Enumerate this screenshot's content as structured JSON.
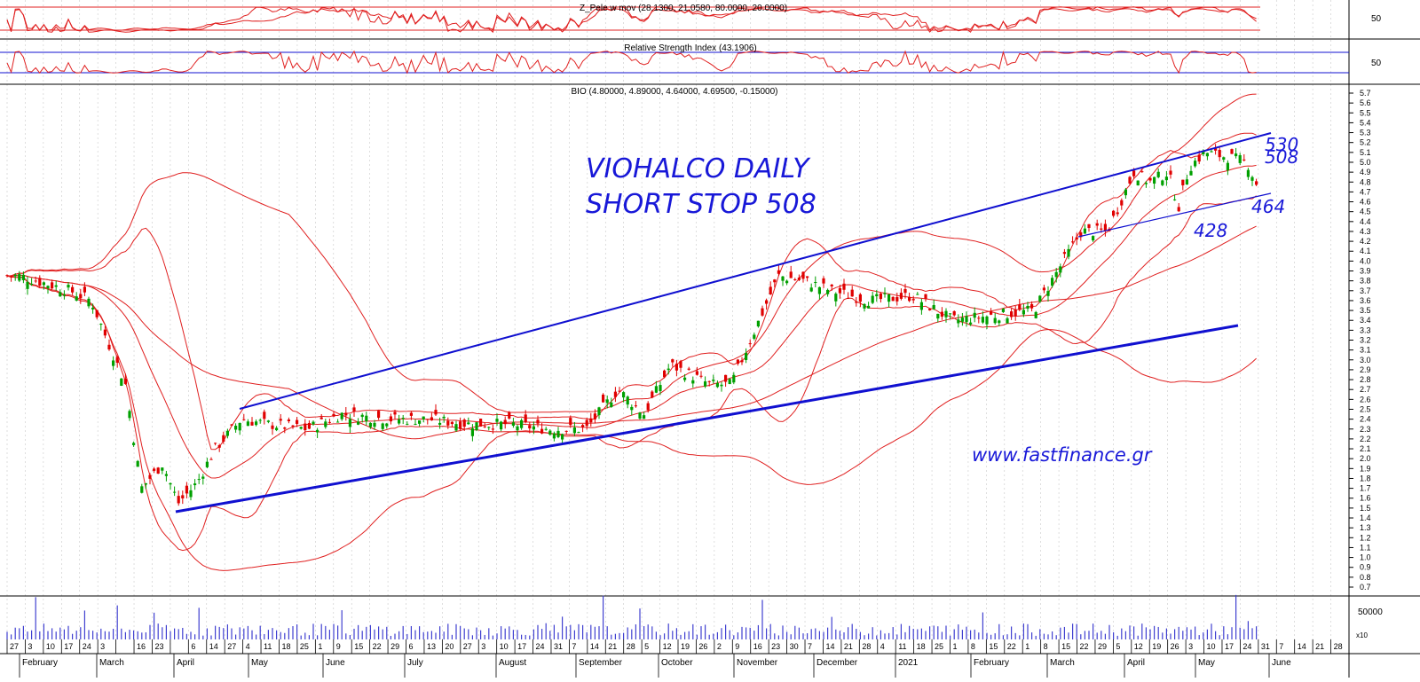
{
  "panels": {
    "stoch_label": "Z_Pele w mov (28.1300, 21.0580, 80.0000, 20.0000)",
    "rsi_label": "Relative Strength Index (43.1906)",
    "price_label": "BIO (4.80000, 4.89000, 4.64000, 4.69500, -0.15000)",
    "stoch_axis_label": "50",
    "rsi_axis_label": "50",
    "volume_axis_label": "50000",
    "volume_multiplier": "x10"
  },
  "annotations": {
    "title_line1": "VIOHALCO DAILY",
    "title_line2": "SHORT STOP 508",
    "website": "www.fastfinance.gr",
    "level_530": "530",
    "level_508": "508",
    "level_464": "464",
    "level_428": "428"
  },
  "colors": {
    "up_candle": "#00a000",
    "down_candle": "#e00000",
    "bands": "#e02020",
    "trend": "#1010d0",
    "volume": "#4040d0",
    "grid": "#c8c8c8"
  },
  "x_axis": {
    "days": [
      "27",
      "3",
      "10",
      "17",
      "24",
      "3",
      "",
      "16",
      "23",
      "",
      "6",
      "14",
      "27",
      "4",
      "11",
      "18",
      "25",
      "1",
      "9",
      "15",
      "22",
      "29",
      "6",
      "13",
      "20",
      "27",
      "3",
      "10",
      "17",
      "24",
      "31",
      "7",
      "14",
      "21",
      "28",
      "5",
      "12",
      "19",
      "26",
      "2",
      "9",
      "16",
      "23",
      "30",
      "7",
      "14",
      "21",
      "28",
      "4",
      "11",
      "18",
      "25",
      "1",
      "8",
      "15",
      "22",
      "1",
      "8",
      "15",
      "22",
      "29",
      "5",
      "12",
      "19",
      "26",
      "3",
      "10",
      "17",
      "24",
      "31",
      "7",
      "14",
      "21",
      "28"
    ],
    "months": [
      "February",
      "March",
      "April",
      "May",
      "June",
      "July",
      "August",
      "September",
      "October",
      "November",
      "December",
      "2021",
      "February",
      "March",
      "April",
      "May",
      "June"
    ]
  },
  "chart_data": {
    "type": "candlestick",
    "title": "BIO (4.80000, 4.89000, 4.64000, 4.69500, -0.15000)",
    "y_ticks": [
      0.7,
      0.8,
      0.9,
      1.0,
      1.1,
      1.2,
      1.3,
      1.4,
      1.5,
      1.6,
      1.7,
      1.8,
      1.9,
      2.0,
      2.1,
      2.2,
      2.3,
      2.4,
      2.5,
      2.6,
      2.7,
      2.8,
      2.9,
      3.0,
      3.1,
      3.2,
      3.3,
      3.4,
      3.5,
      3.6,
      3.7,
      3.8,
      3.9,
      4.0,
      4.1,
      4.2,
      4.3,
      4.4,
      4.5,
      4.6,
      4.7,
      4.8,
      4.9,
      5.0,
      5.1,
      5.2,
      5.3,
      5.4,
      5.5,
      5.6,
      5.7
    ],
    "ylim": [
      0.7,
      5.7
    ],
    "close_path": [
      [
        "2020-02-01",
        3.85
      ],
      [
        "2020-02-20",
        3.7
      ],
      [
        "2020-02-28",
        3.6
      ],
      [
        "2020-03-05",
        3.2
      ],
      [
        "2020-03-12",
        2.75
      ],
      [
        "2020-03-18",
        1.7
      ],
      [
        "2020-03-26",
        1.95
      ],
      [
        "2020-04-01",
        1.55
      ],
      [
        "2020-04-08",
        1.75
      ],
      [
        "2020-04-15",
        2.1
      ],
      [
        "2020-04-25",
        2.4
      ],
      [
        "2020-05-05",
        2.35
      ],
      [
        "2020-05-20",
        2.3
      ],
      [
        "2020-06-02",
        2.45
      ],
      [
        "2020-06-20",
        2.4
      ],
      [
        "2020-07-05",
        2.4
      ],
      [
        "2020-07-20",
        2.35
      ],
      [
        "2020-08-05",
        2.35
      ],
      [
        "2020-08-20",
        2.3
      ],
      [
        "2020-09-03",
        2.3
      ],
      [
        "2020-09-15",
        2.7
      ],
      [
        "2020-09-25",
        2.45
      ],
      [
        "2020-10-05",
        2.95
      ],
      [
        "2020-10-20",
        2.75
      ],
      [
        "2020-10-28",
        2.75
      ],
      [
        "2020-11-06",
        3.3
      ],
      [
        "2020-11-15",
        3.85
      ],
      [
        "2020-11-25",
        3.8
      ],
      [
        "2020-12-05",
        3.7
      ],
      [
        "2020-12-20",
        3.6
      ],
      [
        "2021-01-05",
        3.65
      ],
      [
        "2021-01-20",
        3.4
      ],
      [
        "2021-02-05",
        3.45
      ],
      [
        "2021-02-20",
        3.5
      ],
      [
        "2021-03-01",
        3.9
      ],
      [
        "2021-03-10",
        4.3
      ],
      [
        "2021-03-20",
        4.3
      ],
      [
        "2021-03-30",
        4.9
      ],
      [
        "2021-04-05",
        4.8
      ],
      [
        "2021-04-12",
        4.9
      ],
      [
        "2021-04-16",
        4.55
      ],
      [
        "2021-04-20",
        4.95
      ],
      [
        "2021-04-26",
        5.1
      ],
      [
        "2021-05-05",
        5.05
      ],
      [
        "2021-05-12",
        5.0
      ],
      [
        "2021-05-17",
        4.69
      ]
    ],
    "volume_ticks": [
      50000
    ],
    "trendlines_price": {
      "upper_channel": [
        [
          "2020-04-28",
          2.5
        ],
        [
          "2021-05-24",
          5.3
        ]
      ],
      "lower_channel": [
        [
          "2020-04-03",
          1.47
        ],
        [
          "2021-05-24",
          4.7
        ]
      ],
      "support": [
        [
          "2020-04-03",
          1.47
        ],
        [
          "2021-05-17",
          3.38
        ]
      ]
    }
  }
}
